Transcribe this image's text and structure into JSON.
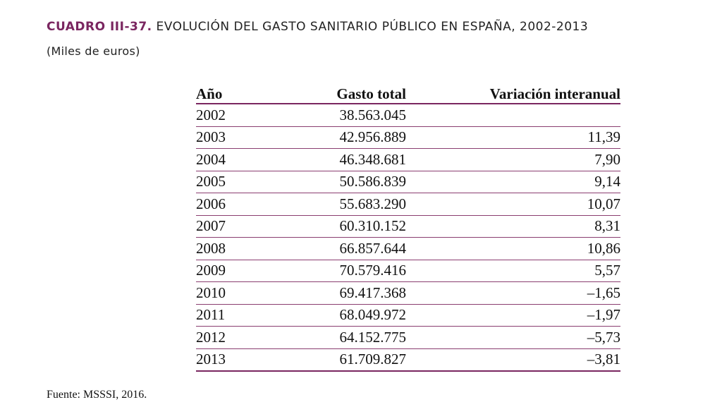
{
  "title": {
    "label": "CUADRO III-37.",
    "text": "EVOLUCIÓN DEL GASTO SANITARIO PÚBLICO EN ESPAÑA, 2002-2013"
  },
  "subtitle": "(Miles de euros)",
  "table": {
    "headers": [
      "Año",
      "Gasto total",
      "Variación interanual"
    ],
    "rows": [
      [
        "2002",
        "38.563.045",
        ""
      ],
      [
        "2003",
        "42.956.889",
        "11,39"
      ],
      [
        "2004",
        "46.348.681",
        "7,90"
      ],
      [
        "2005",
        "50.586.839",
        "9,14"
      ],
      [
        "2006",
        "55.683.290",
        "10,07"
      ],
      [
        "2007",
        "60.310.152",
        "8,31"
      ],
      [
        "2008",
        "66.857.644",
        "10,86"
      ],
      [
        "2009",
        "70.579.416",
        "5,57"
      ],
      [
        "2010",
        "69.417.368",
        "–1,65"
      ],
      [
        "2011",
        "68.049.972",
        "–1,97"
      ],
      [
        "2012",
        "64.152.775",
        "–5,73"
      ],
      [
        "2013",
        "61.709.827",
        "–3,81"
      ]
    ]
  },
  "source": "Fuente: MSSSI, 2016.",
  "colors": {
    "accent": "#7a2660"
  }
}
